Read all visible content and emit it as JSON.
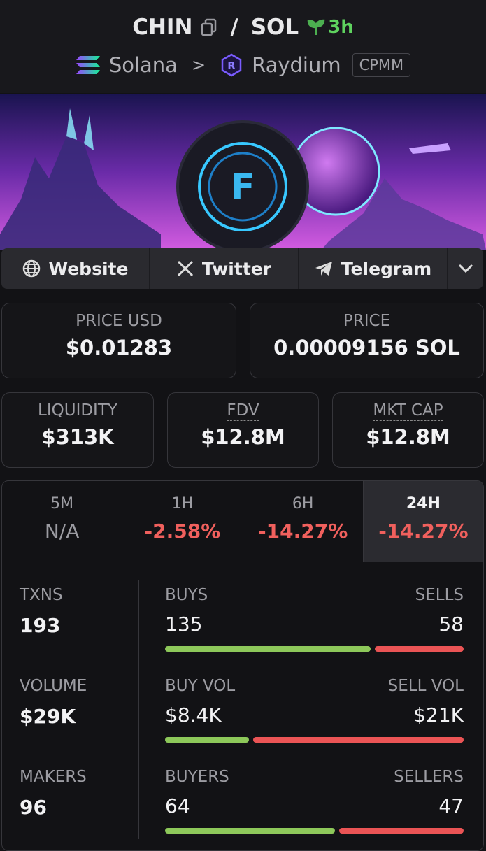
{
  "header": {
    "base": "CHIN",
    "separator": "/",
    "quote": "SOL",
    "age": "3h",
    "chain": "Solana",
    "chevron": ">",
    "dex": "Raydium",
    "pool_type": "CPMM"
  },
  "links": [
    "Website",
    "Twitter",
    "Telegram"
  ],
  "prices": [
    {
      "label": "PRICE USD",
      "value": "$0.01283"
    },
    {
      "label": "PRICE",
      "value": "0.00009156 SOL"
    }
  ],
  "metrics": [
    {
      "label": "LIQUIDITY",
      "value": "$313K"
    },
    {
      "label": "FDV",
      "value": "$12.8M"
    },
    {
      "label": "MKT CAP",
      "value": "$12.8M"
    }
  ],
  "timeframes": [
    {
      "label": "5M",
      "change": "N/A"
    },
    {
      "label": "1H",
      "change": "-2.58%"
    },
    {
      "label": "6H",
      "change": "-14.27%"
    },
    {
      "label": "24H",
      "change": "-14.27%"
    }
  ],
  "selected_timeframe": 3,
  "stats": [
    {
      "label": "TXNS",
      "total": 193,
      "left_label": "BUYS",
      "left": 135,
      "right_label": "SELLS",
      "right": 58
    },
    {
      "label": "VOLUME",
      "total": "$29K",
      "left_label": "BUY VOL",
      "left": {
        "value": 8400,
        "label": "$8.4K"
      },
      "right_label": "SELL VOL",
      "right": {
        "value": 21000,
        "label": "$21K"
      }
    },
    {
      "label": "MAKERS",
      "total": 96,
      "left_label": "BUYERS",
      "left": 64,
      "right_label": "SELLERS",
      "right": 47
    }
  ]
}
